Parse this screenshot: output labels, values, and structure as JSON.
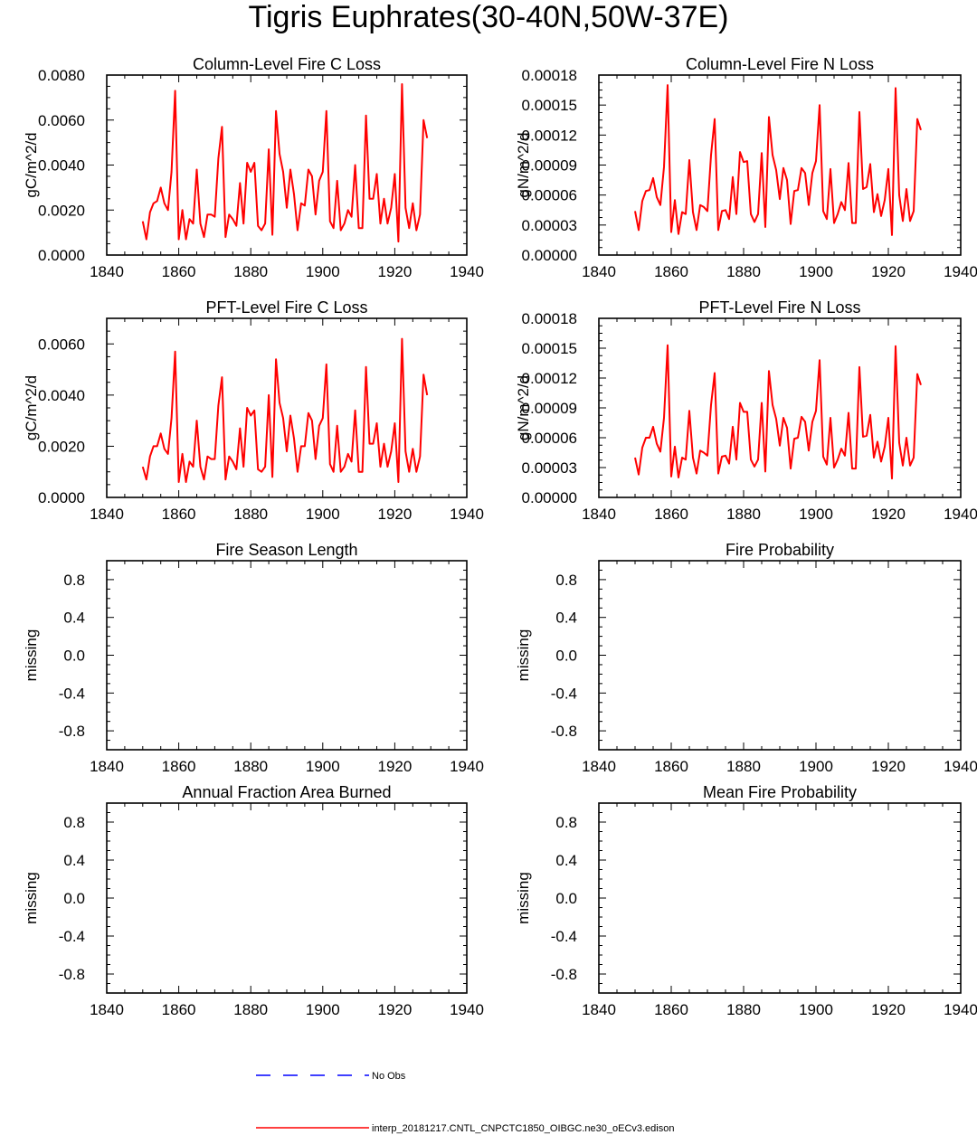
{
  "title": "Tigris Euphrates(30-40N,50W-37E)",
  "colors": {
    "model": "#ff0000",
    "obs": "#0000ff",
    "axis": "#000000"
  },
  "legend": {
    "obs_label": "No Obs",
    "model_label": "interp_20181217.CNTL_CNPCTC1850_OIBGC.ne30_oECv3.edison"
  },
  "chart_data": [
    {
      "type": "line",
      "title": "Column-Level Fire C Loss",
      "ylabel": "gC/m^2/d",
      "xlim": [
        1840,
        1940
      ],
      "ylim": [
        0,
        0.008
      ],
      "xticks": [
        1840,
        1860,
        1880,
        1900,
        1920,
        1940
      ],
      "yticks": [
        0,
        0.002,
        0.004,
        0.006,
        0.008
      ],
      "ytick_labels": [
        "0.0000",
        "0.0020",
        "0.0040",
        "0.0060",
        "0.0080"
      ],
      "series": [
        {
          "name": "interp_20181217.CNTL_CNPCTC1850_OIBGC.ne30_oECv3.edison",
          "x": [
            1850,
            1851,
            1852,
            1853,
            1854,
            1855,
            1856,
            1857,
            1858,
            1859,
            1860,
            1861,
            1862,
            1863,
            1864,
            1865,
            1866,
            1867,
            1868,
            1869,
            1870,
            1871,
            1872,
            1873,
            1874,
            1875,
            1876,
            1877,
            1878,
            1879,
            1880,
            1881,
            1882,
            1883,
            1884,
            1885,
            1886,
            1887,
            1888,
            1889,
            1890,
            1891,
            1892,
            1893,
            1894,
            1895,
            1896,
            1897,
            1898,
            1899,
            1900,
            1901,
            1902,
            1903,
            1904,
            1905,
            1906,
            1907,
            1908,
            1909,
            1910,
            1911,
            1912,
            1913,
            1914,
            1915,
            1916,
            1917,
            1918,
            1919,
            1920,
            1921,
            1922,
            1923,
            1924,
            1925,
            1926,
            1927,
            1928,
            1929
          ],
          "values": [
            0.0015,
            0.0007,
            0.0019,
            0.0023,
            0.0024,
            0.003,
            0.0023,
            0.002,
            0.0037,
            0.0073,
            0.0007,
            0.002,
            0.0007,
            0.0016,
            0.0014,
            0.0038,
            0.0014,
            0.0008,
            0.0018,
            0.0018,
            0.0017,
            0.0043,
            0.0057,
            0.0008,
            0.0018,
            0.0016,
            0.0013,
            0.0032,
            0.0014,
            0.0041,
            0.0037,
            0.0041,
            0.0013,
            0.0011,
            0.0014,
            0.0047,
            0.0009,
            0.0064,
            0.0045,
            0.0037,
            0.0021,
            0.0038,
            0.0027,
            0.0011,
            0.0023,
            0.0022,
            0.0038,
            0.0035,
            0.0018,
            0.0033,
            0.0037,
            0.0064,
            0.0015,
            0.0012,
            0.0033,
            0.0011,
            0.0014,
            0.002,
            0.0017,
            0.004,
            0.0012,
            0.0012,
            0.0062,
            0.0025,
            0.0025,
            0.0036,
            0.0014,
            0.0025,
            0.0014,
            0.0021,
            0.0036,
            0.0006,
            0.0076,
            0.0021,
            0.0012,
            0.0023,
            0.0011,
            0.0018,
            0.006,
            0.0052
          ]
        }
      ]
    },
    {
      "type": "line",
      "title": "Column-Level Fire N Loss",
      "ylabel": "gN/m^2/d",
      "xlim": [
        1840,
        1940
      ],
      "ylim": [
        0,
        0.00018
      ],
      "xticks": [
        1840,
        1860,
        1880,
        1900,
        1920,
        1940
      ],
      "yticks": [
        0,
        3e-05,
        6e-05,
        9e-05,
        0.00012,
        0.00015,
        0.00018
      ],
      "ytick_labels": [
        "0.00000",
        "0.00003",
        "0.00006",
        "0.00009",
        "0.00012",
        "0.00015",
        "0.00018"
      ],
      "series": [
        {
          "name": "interp_20181217.CNTL_CNPCTC1850_OIBGC.ne30_oECv3.edison",
          "x": [
            1850,
            1851,
            1852,
            1853,
            1854,
            1855,
            1856,
            1857,
            1858,
            1859,
            1860,
            1861,
            1862,
            1863,
            1864,
            1865,
            1866,
            1867,
            1868,
            1869,
            1870,
            1871,
            1872,
            1873,
            1874,
            1875,
            1876,
            1877,
            1878,
            1879,
            1880,
            1881,
            1882,
            1883,
            1884,
            1885,
            1886,
            1887,
            1888,
            1889,
            1890,
            1891,
            1892,
            1893,
            1894,
            1895,
            1896,
            1897,
            1898,
            1899,
            1900,
            1901,
            1902,
            1903,
            1904,
            1905,
            1906,
            1907,
            1908,
            1909,
            1910,
            1911,
            1912,
            1913,
            1914,
            1915,
            1916,
            1917,
            1918,
            1919,
            1920,
            1921,
            1922,
            1923,
            1924,
            1925,
            1926,
            1927,
            1928,
            1929
          ],
          "values": [
            4.4e-05,
            2.5e-05,
            5.4e-05,
            6.4e-05,
            6.5e-05,
            7.7e-05,
            5.8e-05,
            5e-05,
            8.8e-05,
            0.00017,
            2.3e-05,
            5.5e-05,
            2.1e-05,
            4.3e-05,
            4.1e-05,
            9.5e-05,
            4.3e-05,
            2.5e-05,
            5e-05,
            4.8e-05,
            4.4e-05,
            0.0001,
            0.000136,
            2.5e-05,
            4.4e-05,
            4.5e-05,
            3.6e-05,
            7.8e-05,
            4.1e-05,
            0.000103,
            9.3e-05,
            9.4e-05,
            4.1e-05,
            3.3e-05,
            4.1e-05,
            0.000102,
            2.8e-05,
            0.000138,
            0.0001,
            8.5e-05,
            5.6e-05,
            8.7e-05,
            7.5e-05,
            3.1e-05,
            6.4e-05,
            6.5e-05,
            8.7e-05,
            8.2e-05,
            5e-05,
            8.2e-05,
            9.4e-05,
            0.00015,
            4.4e-05,
            3.6e-05,
            8.6e-05,
            3.2e-05,
            4.1e-05,
            5.3e-05,
            4.5e-05,
            9.2e-05,
            3.2e-05,
            3.2e-05,
            0.000143,
            6.6e-05,
            6.8e-05,
            9.1e-05,
            4.3e-05,
            6.1e-05,
            3.9e-05,
            5.5e-05,
            8.6e-05,
            2e-05,
            0.000167,
            6e-05,
            3.4e-05,
            6.6e-05,
            3.4e-05,
            4.4e-05,
            0.000136,
            0.000125
          ]
        }
      ]
    },
    {
      "type": "line",
      "title": "PFT-Level Fire C Loss",
      "ylabel": "gC/m^2/d",
      "xlim": [
        1840,
        1940
      ],
      "ylim": [
        0,
        0.007
      ],
      "xticks": [
        1840,
        1860,
        1880,
        1900,
        1920,
        1940
      ],
      "yticks": [
        0,
        0.002,
        0.004,
        0.006
      ],
      "ytick_labels": [
        "0.0000",
        "0.0020",
        "0.0040",
        "0.0060"
      ],
      "series": [
        {
          "name": "interp_20181217.CNTL_CNPCTC1850_OIBGC.ne30_oECv3.edison",
          "x": [
            1850,
            1851,
            1852,
            1853,
            1854,
            1855,
            1856,
            1857,
            1858,
            1859,
            1860,
            1861,
            1862,
            1863,
            1864,
            1865,
            1866,
            1867,
            1868,
            1869,
            1870,
            1871,
            1872,
            1873,
            1874,
            1875,
            1876,
            1877,
            1878,
            1879,
            1880,
            1881,
            1882,
            1883,
            1884,
            1885,
            1886,
            1887,
            1888,
            1889,
            1890,
            1891,
            1892,
            1893,
            1894,
            1895,
            1896,
            1897,
            1898,
            1899,
            1900,
            1901,
            1902,
            1903,
            1904,
            1905,
            1906,
            1907,
            1908,
            1909,
            1910,
            1911,
            1912,
            1913,
            1914,
            1915,
            1916,
            1917,
            1918,
            1919,
            1920,
            1921,
            1922,
            1923,
            1924,
            1925,
            1926,
            1927,
            1928,
            1929
          ],
          "values": [
            0.0012,
            0.0007,
            0.0016,
            0.002,
            0.002,
            0.0025,
            0.0019,
            0.0017,
            0.0031,
            0.0057,
            0.0006,
            0.0017,
            0.0006,
            0.0014,
            0.0012,
            0.003,
            0.0012,
            0.0007,
            0.0016,
            0.0015,
            0.0015,
            0.0036,
            0.0047,
            0.0007,
            0.0016,
            0.0014,
            0.0011,
            0.0027,
            0.0012,
            0.0035,
            0.0032,
            0.0034,
            0.0011,
            0.001,
            0.0012,
            0.004,
            0.0008,
            0.0054,
            0.0037,
            0.0031,
            0.0018,
            0.0032,
            0.0023,
            0.001,
            0.002,
            0.002,
            0.0033,
            0.003,
            0.0015,
            0.0028,
            0.0031,
            0.0052,
            0.0013,
            0.001,
            0.0028,
            0.001,
            0.0012,
            0.0017,
            0.0014,
            0.0034,
            0.001,
            0.001,
            0.0051,
            0.0021,
            0.0021,
            0.0029,
            0.0012,
            0.0021,
            0.0012,
            0.0018,
            0.0029,
            0.0006,
            0.0062,
            0.0018,
            0.001,
            0.0019,
            0.001,
            0.0016,
            0.0048,
            0.004
          ]
        }
      ]
    },
    {
      "type": "line",
      "title": "PFT-Level Fire N Loss",
      "ylabel": "gN/m^2/d",
      "xlim": [
        1840,
        1940
      ],
      "ylim": [
        0,
        0.00018
      ],
      "xticks": [
        1840,
        1860,
        1880,
        1900,
        1920,
        1940
      ],
      "yticks": [
        0,
        3e-05,
        6e-05,
        9e-05,
        0.00012,
        0.00015,
        0.00018
      ],
      "ytick_labels": [
        "0.00000",
        "0.00003",
        "0.00006",
        "0.00009",
        "0.00012",
        "0.00015",
        "0.00018"
      ],
      "series": [
        {
          "name": "interp_20181217.CNTL_CNPCTC1850_OIBGC.ne30_oECv3.edison",
          "x": [
            1850,
            1851,
            1852,
            1853,
            1854,
            1855,
            1856,
            1857,
            1858,
            1859,
            1860,
            1861,
            1862,
            1863,
            1864,
            1865,
            1866,
            1867,
            1868,
            1869,
            1870,
            1871,
            1872,
            1873,
            1874,
            1875,
            1876,
            1877,
            1878,
            1879,
            1880,
            1881,
            1882,
            1883,
            1884,
            1885,
            1886,
            1887,
            1888,
            1889,
            1890,
            1891,
            1892,
            1893,
            1894,
            1895,
            1896,
            1897,
            1898,
            1899,
            1900,
            1901,
            1902,
            1903,
            1904,
            1905,
            1906,
            1907,
            1908,
            1909,
            1910,
            1911,
            1912,
            1913,
            1914,
            1915,
            1916,
            1917,
            1918,
            1919,
            1920,
            1921,
            1922,
            1923,
            1924,
            1925,
            1926,
            1927,
            1928,
            1929
          ],
          "values": [
            4e-05,
            2.3e-05,
            5e-05,
            6e-05,
            6e-05,
            7.1e-05,
            5.4e-05,
            4.6e-05,
            8e-05,
            0.000153,
            2.1e-05,
            5.1e-05,
            2e-05,
            4e-05,
            3.8e-05,
            8.7e-05,
            4e-05,
            2.4e-05,
            4.7e-05,
            4.5e-05,
            4.2e-05,
            9.3e-05,
            0.000125,
            2.4e-05,
            4.1e-05,
            4.2e-05,
            3.4e-05,
            7.1e-05,
            3.8e-05,
            9.5e-05,
            8.6e-05,
            8.6e-05,
            3.8e-05,
            3.1e-05,
            3.8e-05,
            9.5e-05,
            2.6e-05,
            0.000127,
            9.3e-05,
            7.9e-05,
            5.2e-05,
            8e-05,
            7e-05,
            2.9e-05,
            5.9e-05,
            6e-05,
            8.1e-05,
            7.6e-05,
            4.7e-05,
            7.6e-05,
            8.7e-05,
            0.000138,
            4.1e-05,
            3.3e-05,
            8e-05,
            3e-05,
            3.8e-05,
            4.9e-05,
            4.2e-05,
            8.5e-05,
            2.9e-05,
            2.9e-05,
            0.000131,
            6.1e-05,
            6.2e-05,
            8.3e-05,
            4e-05,
            5.6e-05,
            3.6e-05,
            5.1e-05,
            8e-05,
            1.9e-05,
            0.000152,
            5.5e-05,
            3.2e-05,
            6e-05,
            3.2e-05,
            4e-05,
            0.000124,
            0.000113
          ]
        }
      ]
    },
    {
      "type": "line",
      "title": "Fire Season Length",
      "ylabel": "missing",
      "xlim": [
        1840,
        1940
      ],
      "ylim": [
        -1,
        1
      ],
      "xticks": [
        1840,
        1860,
        1880,
        1900,
        1920,
        1940
      ],
      "yticks": [
        -0.8,
        -0.4,
        0,
        0.4,
        0.8
      ],
      "ytick_labels": [
        "-0.8",
        "-0.4",
        "0.0",
        "0.4",
        "0.8"
      ],
      "series": []
    },
    {
      "type": "line",
      "title": "Fire Probability",
      "ylabel": "missing",
      "xlim": [
        1840,
        1940
      ],
      "ylim": [
        -1,
        1
      ],
      "xticks": [
        1840,
        1860,
        1880,
        1900,
        1920,
        1940
      ],
      "yticks": [
        -0.8,
        -0.4,
        0,
        0.4,
        0.8
      ],
      "ytick_labels": [
        "-0.8",
        "-0.4",
        "0.0",
        "0.4",
        "0.8"
      ],
      "series": []
    },
    {
      "type": "line",
      "title": "Annual Fraction Area Burned",
      "ylabel": "missing",
      "xlim": [
        1840,
        1940
      ],
      "ylim": [
        -1,
        1
      ],
      "xticks": [
        1840,
        1860,
        1880,
        1900,
        1920,
        1940
      ],
      "yticks": [
        -0.8,
        -0.4,
        0,
        0.4,
        0.8
      ],
      "ytick_labels": [
        "-0.8",
        "-0.4",
        "0.0",
        "0.4",
        "0.8"
      ],
      "series": []
    },
    {
      "type": "line",
      "title": "Mean Fire Probability",
      "ylabel": "missing",
      "xlim": [
        1840,
        1940
      ],
      "ylim": [
        -1,
        1
      ],
      "xticks": [
        1840,
        1860,
        1880,
        1900,
        1920,
        1940
      ],
      "yticks": [
        -0.8,
        -0.4,
        0,
        0.4,
        0.8
      ],
      "ytick_labels": [
        "-0.8",
        "-0.4",
        "0.0",
        "0.4",
        "0.8"
      ],
      "series": []
    }
  ]
}
